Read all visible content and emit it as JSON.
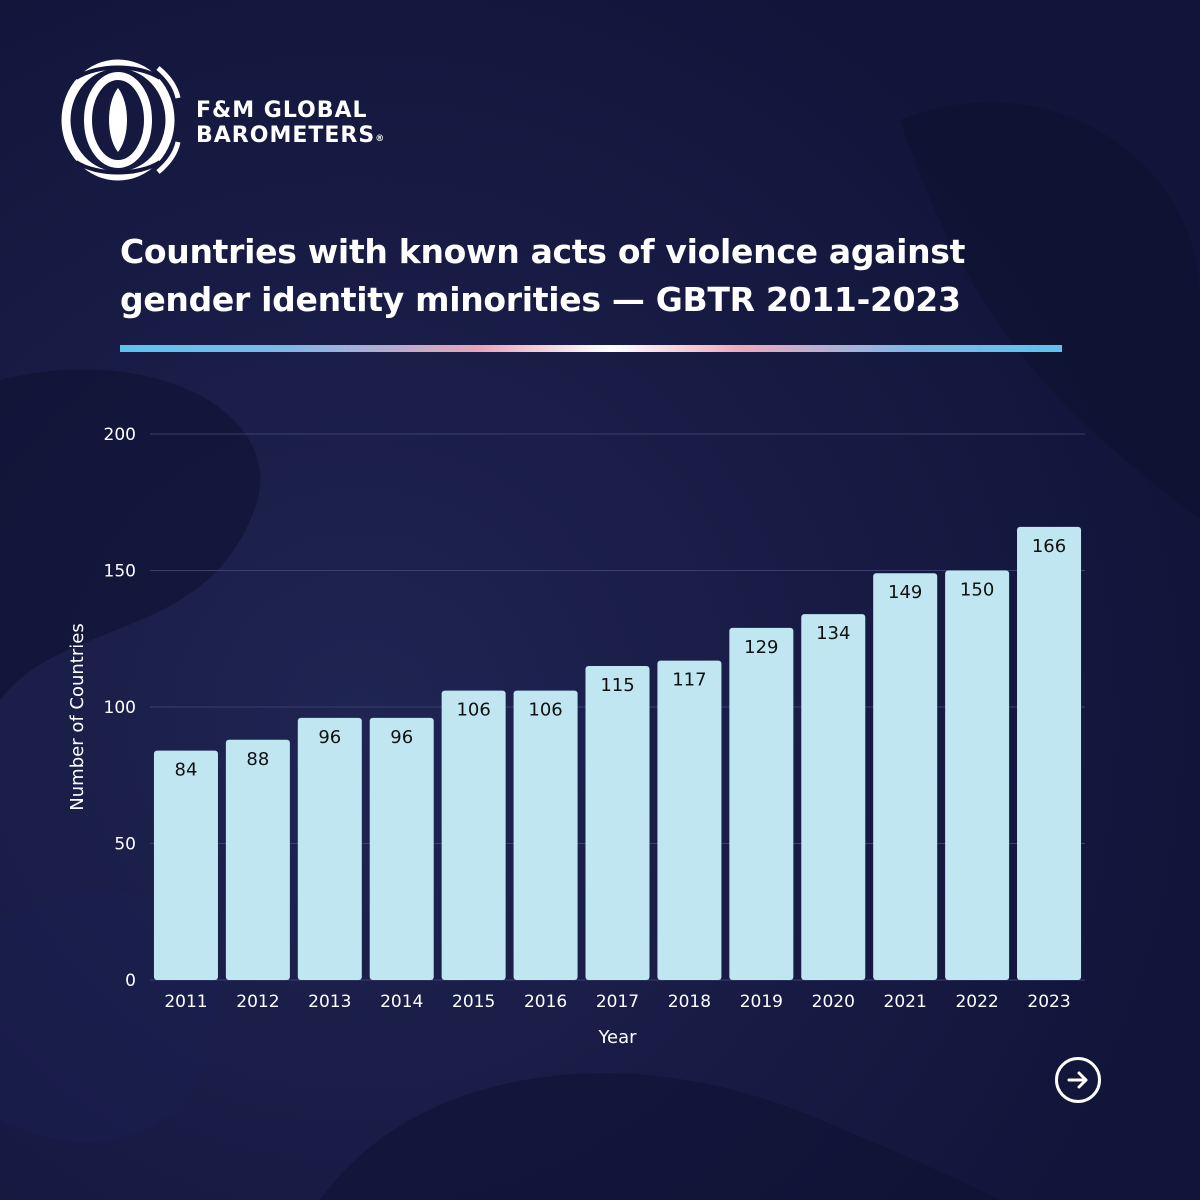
{
  "brand": {
    "line1": "F&M GLOBAL",
    "line2": "BAROMETERS",
    "registered": "®"
  },
  "colors": {
    "background": "#13163a",
    "bar": "#bfe6f1",
    "text": "#ffffff",
    "axis_text": "#ffffff",
    "label_text": "#111111"
  },
  "icons": {
    "logo": "fm-global-barometers-logo-icon",
    "next": "arrow-right-circle-icon"
  },
  "chart_data": {
    "type": "bar",
    "title": "Countries with known acts of violence against gender identity minorities — GBTR 2011-2023",
    "xlabel": "Year",
    "ylabel": "Number of Countries",
    "categories": [
      "2011",
      "2012",
      "2013",
      "2014",
      "2015",
      "2016",
      "2017",
      "2018",
      "2019",
      "2020",
      "2021",
      "2022",
      "2023"
    ],
    "values": [
      84,
      88,
      96,
      96,
      106,
      106,
      115,
      117,
      129,
      134,
      149,
      150,
      166
    ],
    "data_labels": [
      "84",
      "88",
      "96",
      "96",
      "106",
      "106",
      "115",
      "117",
      "129",
      "134",
      "149",
      "150",
      "166"
    ],
    "ylim": [
      0,
      200
    ],
    "yticks": [
      0,
      50,
      100,
      150,
      200
    ],
    "grid": true,
    "legend": "none"
  }
}
